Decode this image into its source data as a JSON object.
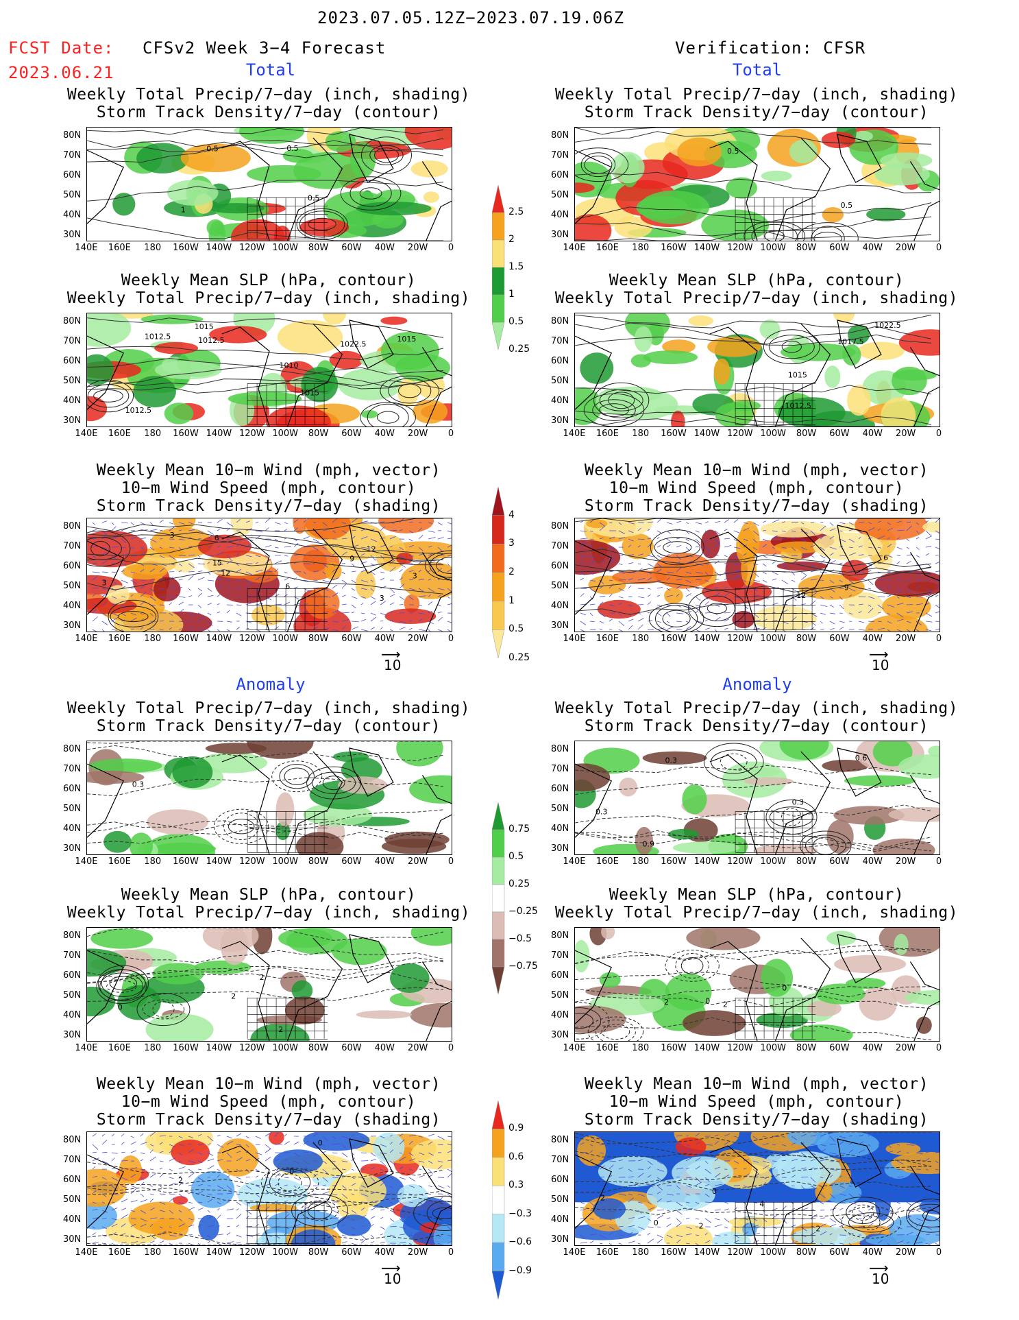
{
  "header": {
    "period": "2023.07.05.12Z−2023.07.19.06Z",
    "fcst_label": "FCST Date:",
    "fcst_date": "2023.06.21",
    "left_title": "CFSv2 Week 3−4 Forecast",
    "right_title": "Verification: CFSR"
  },
  "sections": {
    "total": "Total",
    "anomaly": "Anomaly"
  },
  "titles": {
    "precip_storm": [
      "Weekly Total Precip/7−day (inch, shading)",
      "Storm Track Density/7−day (contour)"
    ],
    "slp_precip": [
      "Weekly Mean SLP (hPa, contour)",
      "Weekly Total Precip/7−day (inch, shading)"
    ],
    "wind_storm": [
      "Weekly Mean 10−m Wind (mph, vector)",
      "10−m Wind Speed (mph, contour)",
      "Storm Track Density/7−day (shading)"
    ]
  },
  "axes": {
    "y_labels": [
      "80N",
      "70N",
      "60N",
      "50N",
      "40N",
      "30N"
    ],
    "x_labels": [
      "140E",
      "160E",
      "180",
      "160W",
      "140W",
      "120W",
      "100W",
      "80W",
      "60W",
      "40W",
      "20W",
      "0"
    ]
  },
  "vector_ref": {
    "arrow": "⟶",
    "value": "10"
  },
  "colorbars": {
    "precip_total": {
      "labels": [
        "2.5",
        "2",
        "1.5",
        "1",
        "0.5",
        "0.25"
      ],
      "colors": [
        "#e8281e",
        "#f5a21e",
        "#fbe078",
        "#1e9a32",
        "#52cf4a",
        "#a5eba0"
      ]
    },
    "storm_total": {
      "labels": [
        "4",
        "3",
        "2",
        "1",
        "0.5",
        "0.25"
      ],
      "colors": [
        "#a0141e",
        "#d7281e",
        "#f26c1e",
        "#f5a21e",
        "#f8c850",
        "#fbe898"
      ]
    },
    "precip_anom": {
      "labels": [
        "0.75",
        "0.5",
        "0.25",
        "−0.25",
        "−0.5",
        "−0.75"
      ],
      "colors": [
        "#1e9a32",
        "#52cf4a",
        "#a5eba0",
        "#ffffff",
        "#dcbcb4",
        "#a07468",
        "#6e4034"
      ]
    },
    "storm_anom": {
      "labels": [
        "0.9",
        "0.6",
        "0.3",
        "−0.3",
        "−0.6",
        "−0.9"
      ],
      "colors": [
        "#e8281e",
        "#f5a21e",
        "#fbe078",
        "#ffffff",
        "#b4e8f5",
        "#5aaaf0",
        "#1e5ad2"
      ]
    }
  },
  "contour_labels": {
    "p1_left": [
      "0.5",
      "1",
      "0.5",
      "0.5"
    ],
    "p1_right": [
      "0.5",
      "0.5"
    ],
    "p2_left": [
      "1015",
      "1012.5",
      "1015",
      "1010",
      "1012.5",
      "1012.5",
      "1015",
      "1022.5"
    ],
    "p2_right": [
      "1017.5",
      "1012.5",
      "1015",
      "1022.5"
    ],
    "p3_left": [
      "3",
      "3",
      "6",
      "3",
      "3",
      "6",
      "12",
      "12",
      "15",
      "9"
    ],
    "p3_right": [
      "12",
      "9",
      "6"
    ],
    "p4_left": [
      "0.3"
    ],
    "p4_right": [
      "0.3",
      "0.3",
      "0.9",
      "0.6",
      "0.3"
    ],
    "p5_left": [
      "2",
      "2",
      "2",
      "0"
    ],
    "p5_right": [
      "2",
      "0",
      "0",
      "2"
    ],
    "p6_left": [
      "0",
      "0",
      "2"
    ],
    "p6_right": [
      "2",
      "2",
      "0",
      "4",
      "2",
      "0"
    ]
  },
  "colors": {
    "accent_red": "#ff2020",
    "accent_blue": "#1f3ff0"
  }
}
